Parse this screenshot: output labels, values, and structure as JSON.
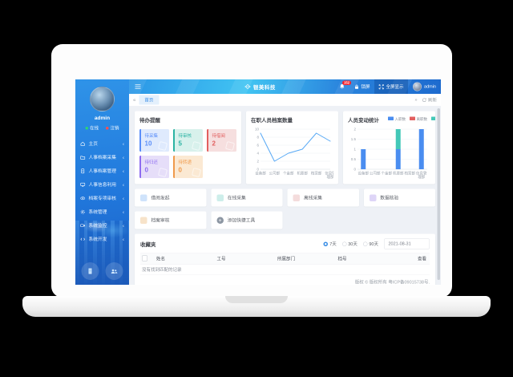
{
  "header": {
    "logo_text": "银美科技",
    "notification_count": "152",
    "lock_label": "锁屏",
    "fullscreen_label": "全屏显示",
    "username": "admin"
  },
  "tabbar": {
    "active_tab": "首页",
    "refresh_label": "刷新"
  },
  "icons": {
    "back": "«",
    "forward": "»",
    "chevron": "‹",
    "plus": "+"
  },
  "sidebar": {
    "username": "admin",
    "status_online": "在线",
    "status_logout": "注销",
    "items": [
      {
        "label": "主页"
      },
      {
        "label": "人事档案采集"
      },
      {
        "label": "人事档案管理"
      },
      {
        "label": "人事信息利用"
      },
      {
        "label": "档案专项审核"
      },
      {
        "label": "系统管理"
      },
      {
        "label": "系统监控"
      },
      {
        "label": "系统开发"
      }
    ]
  },
  "todo": {
    "title": "待办提醒",
    "cards": [
      {
        "label": "待采集",
        "value": "10",
        "accent": "#5b8ff9",
        "bg": "#dfeafd"
      },
      {
        "label": "待审核",
        "value": "5",
        "accent": "#2bb3a3",
        "bg": "#d8f1ec"
      },
      {
        "label": "待借阅",
        "value": "2",
        "accent": "#e25f5f",
        "bg": "#f6dfdf"
      },
      {
        "label": "待归还",
        "value": "0",
        "accent": "#8e6cf0",
        "bg": "#e6def9"
      },
      {
        "label": "待转递",
        "value": "0",
        "accent": "#ef9a4c",
        "bg": "#fbe9d3"
      }
    ]
  },
  "chart_data": [
    {
      "type": "line",
      "title": "在职人员档案数量",
      "categories": [
        "设备部",
        "公司部",
        "个金部",
        "机要部",
        "档案部",
        "信息管理部"
      ],
      "values": [
        9,
        2,
        4,
        5,
        9,
        7
      ],
      "xlabel": "",
      "ylabel": "",
      "ylim": [
        0,
        10
      ],
      "yticks": [
        0,
        2,
        4,
        6,
        8,
        10
      ],
      "color": "#56a8f5",
      "grid": true,
      "legend_position": "none"
    },
    {
      "type": "bar",
      "title": "人员变动统计",
      "stacked": true,
      "categories": [
        "设备部",
        "公司部",
        "个金部",
        "机要部",
        "档案部",
        "信息管理部"
      ],
      "series": [
        {
          "name": "入职数",
          "color": "#4a8df0",
          "values": [
            1,
            0,
            0,
            1,
            0,
            2
          ]
        },
        {
          "name": "离职数",
          "color": "#e25f5f",
          "values": [
            0,
            0,
            0,
            0,
            0,
            0
          ]
        },
        {
          "name": "调动数",
          "color": "#43c8b8",
          "values": [
            0,
            0,
            0,
            1,
            0,
            0
          ]
        }
      ],
      "xlabel": "",
      "ylabel": "",
      "ylim": [
        0,
        2
      ],
      "yticks": [
        0,
        0.5,
        1,
        1.5,
        2
      ],
      "grid": true,
      "legend_position": "top-right"
    }
  ],
  "tools": {
    "items": [
      {
        "label": "借阅发起",
        "color": "#cfe3fb"
      },
      {
        "label": "在线采集",
        "color": "#cdeeea"
      },
      {
        "label": "离线采集",
        "color": "#f4dcdc"
      },
      {
        "label": "数据核验",
        "color": "#ded5f7"
      },
      {
        "label": "档案审核",
        "color": "#f7e3c9"
      },
      {
        "label": "添加快捷工具",
        "color": "#8d97a3"
      }
    ]
  },
  "favorites": {
    "title": "收藏夹",
    "ranges": [
      "7天",
      "30天",
      "90天"
    ],
    "selected_range_index": 0,
    "date": "2021-08-31",
    "columns": [
      "姓名",
      "工号",
      "所属部门",
      "档号",
      "查看"
    ],
    "empty_text": "没有找到匹配的记录"
  },
  "footer": {
    "text": "版权 © 版权所有 粤ICP备09015738号."
  }
}
